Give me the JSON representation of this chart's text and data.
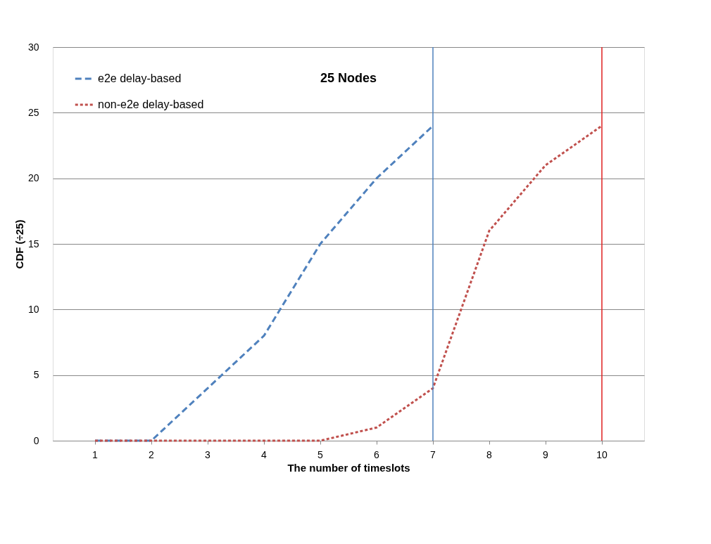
{
  "chart_data": {
    "type": "line",
    "title": "25 Nodes",
    "xlabel": "The number of timeslots",
    "ylabel": "CDF (÷25)",
    "categories": [
      "1",
      "2",
      "3",
      "4",
      "5",
      "6",
      "7",
      "8",
      "9",
      "10"
    ],
    "series": [
      {
        "name": "e2e delay-based",
        "color": "#4f81bd",
        "line_style": "dashed",
        "values": [
          0,
          0,
          4,
          8,
          15,
          20,
          24,
          null,
          null,
          null
        ]
      },
      {
        "name": "non-e2e delay-based",
        "color": "#c0504d",
        "line_style": "dotted",
        "values": [
          0,
          0,
          0,
          0,
          0,
          1,
          4,
          16,
          21,
          24
        ]
      }
    ],
    "ref_lines": [
      {
        "axis": "x",
        "value": "7",
        "color": "#4f81bd"
      },
      {
        "axis": "x",
        "value": "10",
        "color": "#e02020"
      }
    ],
    "ylim": [
      0,
      30
    ],
    "yticks": [
      0,
      5,
      10,
      15,
      20,
      25,
      30
    ],
    "grid": "y",
    "legend": "top left",
    "marker": "none"
  }
}
